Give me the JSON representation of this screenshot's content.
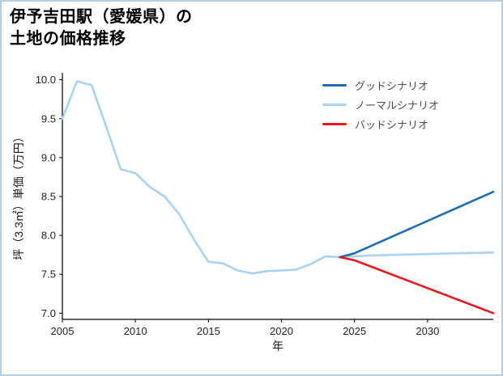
{
  "title": {
    "line1": "伊予吉田駅（愛媛県）の",
    "line2": "土地の価格推移"
  },
  "chart_data": {
    "type": "line",
    "title": "伊予吉田駅（愛媛県）の土地の価格推移",
    "xlabel": "年",
    "ylabel": "坪（3.3㎡）単価（万円）",
    "xlim": [
      2005,
      2034.5
    ],
    "ylim": [
      6.92,
      10.09
    ],
    "grid": false,
    "legend_position": "upper right",
    "xticks": [
      {
        "value": 2005,
        "label": "2005"
      },
      {
        "value": 2010,
        "label": "2010"
      },
      {
        "value": 2015,
        "label": "2015"
      },
      {
        "value": 2020,
        "label": "2020"
      },
      {
        "value": 2025,
        "label": "2025"
      },
      {
        "value": 2030,
        "label": "2030"
      }
    ],
    "yticks": [
      {
        "value": 7.0,
        "label": "7.0"
      },
      {
        "value": 7.5,
        "label": "7.5"
      },
      {
        "value": 8.0,
        "label": "8.0"
      },
      {
        "value": 8.5,
        "label": "8.5"
      },
      {
        "value": 9.0,
        "label": "9.0"
      },
      {
        "value": 9.5,
        "label": "9.5"
      },
      {
        "value": 10.0,
        "label": "10.0"
      }
    ],
    "legend": [
      {
        "label": "グッドシナリオ",
        "color": "#1b6eb4"
      },
      {
        "label": "ノーマルシナリオ",
        "color": "#a9d2f2"
      },
      {
        "label": "バッドシナリオ",
        "color": "#e8191c"
      }
    ],
    "series": [
      {
        "name": "ノーマルシナリオ",
        "color": "#a9d2f2",
        "x": [
          2005,
          2006,
          2007,
          2008,
          2009,
          2010,
          2011,
          2012,
          2013,
          2014,
          2015,
          2016,
          2017,
          2018,
          2019,
          2020,
          2021,
          2022,
          2023,
          2024,
          2026,
          2028,
          2030,
          2032,
          2034.5
        ],
        "y": [
          9.5,
          9.98,
          9.93,
          9.4,
          8.85,
          8.8,
          8.62,
          8.5,
          8.27,
          7.95,
          7.66,
          7.64,
          7.55,
          7.51,
          7.54,
          7.55,
          7.56,
          7.63,
          7.73,
          7.72,
          7.74,
          7.75,
          7.76,
          7.77,
          7.78
        ]
      },
      {
        "name": "グッドシナリオ",
        "color": "#1b6eb4",
        "x": [
          2024,
          2025,
          2034.5
        ],
        "y": [
          7.72,
          7.77,
          8.56
        ]
      },
      {
        "name": "バッドシナリオ",
        "color": "#e8191c",
        "x": [
          2024,
          2025,
          2034.5
        ],
        "y": [
          7.72,
          7.68,
          7.0
        ]
      }
    ]
  }
}
